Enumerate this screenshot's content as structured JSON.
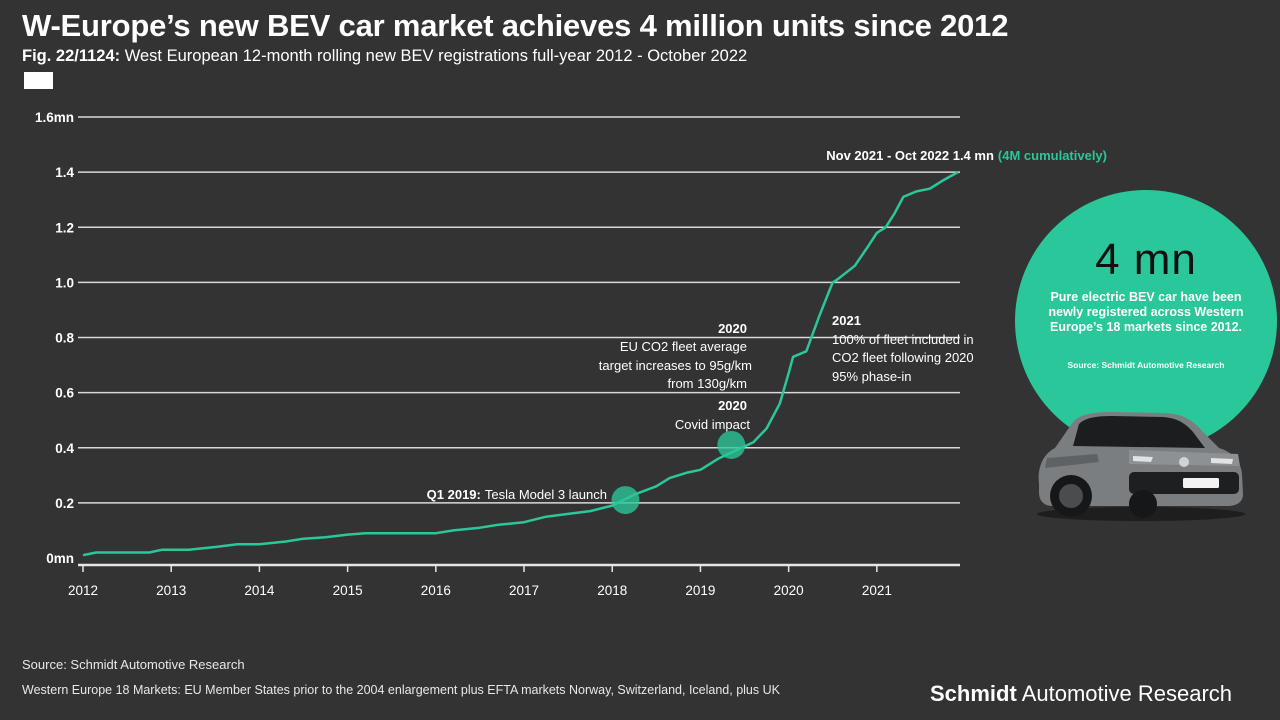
{
  "title": "W-Europe’s new BEV car market achieves 4 million units since 2012",
  "subtitle_fig": "Fig. 22/1124:",
  "subtitle_text": "West European 12-month rolling new BEV registrations full-year 2012 - October 2022",
  "colors": {
    "background": "#333333",
    "accent": "#2ac79a",
    "grid": "#d9d9d9",
    "text": "#ffffff"
  },
  "chart_data": {
    "type": "line",
    "title": "West European 12-month rolling new BEV registrations full-year 2012 - October 2022",
    "xlabel": "",
    "ylabel": "",
    "xlim": [
      2012,
      2021.92
    ],
    "ylim": [
      0,
      1.6
    ],
    "grid": true,
    "y_ticks": [
      {
        "value": 0,
        "label": "0mn"
      },
      {
        "value": 0.2,
        "label": "0.2"
      },
      {
        "value": 0.4,
        "label": "0.4"
      },
      {
        "value": 0.6,
        "label": "0.6"
      },
      {
        "value": 0.8,
        "label": "0.8"
      },
      {
        "value": 1.0,
        "label": "1.0"
      },
      {
        "value": 1.2,
        "label": "1.2"
      },
      {
        "value": 1.4,
        "label": "1.4"
      },
      {
        "value": 1.6,
        "label": "1.6mn"
      }
    ],
    "x_ticks": [
      {
        "value": 2012,
        "label": "2012"
      },
      {
        "value": 2013,
        "label": "2013"
      },
      {
        "value": 2014,
        "label": "2014"
      },
      {
        "value": 2015,
        "label": "2015"
      },
      {
        "value": 2016,
        "label": "2016"
      },
      {
        "value": 2017,
        "label": "2017"
      },
      {
        "value": 2018,
        "label": "2018"
      },
      {
        "value": 2019,
        "label": "2019"
      },
      {
        "value": 2020,
        "label": "2020"
      },
      {
        "value": 2021,
        "label": "2021"
      }
    ],
    "series": [
      {
        "name": "12-month rolling new BEV registrations (mn)",
        "color": "#2ac79a",
        "x": [
          2012,
          2012.15,
          2012.5,
          2012.75,
          2012.9,
          2013.2,
          2013.5,
          2013.75,
          2014,
          2014.3,
          2014.5,
          2014.75,
          2015,
          2015.2,
          2015.5,
          2015.75,
          2016,
          2016.2,
          2016.5,
          2016.7,
          2017,
          2017.25,
          2017.5,
          2017.75,
          2018,
          2018.25,
          2018.5,
          2018.65,
          2018.85,
          2019,
          2019.2,
          2019.4,
          2019.6,
          2019.75,
          2019.9,
          2020,
          2020.05,
          2020.2,
          2020.35,
          2020.5,
          2020.55,
          2020.75,
          2020.9,
          2021,
          2021.1,
          2021.2,
          2021.3,
          2021.45,
          2021.6,
          2021.75,
          2021.92
        ],
        "values": [
          0.01,
          0.02,
          0.02,
          0.02,
          0.03,
          0.03,
          0.04,
          0.05,
          0.05,
          0.06,
          0.07,
          0.075,
          0.085,
          0.09,
          0.09,
          0.09,
          0.09,
          0.1,
          0.11,
          0.12,
          0.13,
          0.15,
          0.16,
          0.17,
          0.19,
          0.23,
          0.26,
          0.29,
          0.31,
          0.32,
          0.36,
          0.39,
          0.42,
          0.47,
          0.56,
          0.67,
          0.73,
          0.75,
          0.88,
          1.0,
          1.01,
          1.06,
          1.13,
          1.18,
          1.2,
          1.25,
          1.31,
          1.33,
          1.34,
          1.37,
          1.4
        ]
      }
    ],
    "markers": [
      {
        "x": 2018.15,
        "y": 0.21
      },
      {
        "x": 2019.35,
        "y": 0.41
      }
    ],
    "annotations": {
      "end_label_main": "Nov 2021 - Oct 2022 1.4 mn",
      "end_label_accent": "(4M cumulatively)",
      "tesla_bold": "Q1 2019:",
      "tesla_text": "Tesla Model 3 launch",
      "covid_year": "2020",
      "covid_text": "Covid impact",
      "co2_year": "2020",
      "co2_line1": "EU CO2 fleet average",
      "co2_line2": "target increases to 95g/km",
      "co2_line3": "from 130g/km",
      "fleet_year": "2021",
      "fleet_line1": "100% of fleet included in",
      "fleet_line2": "CO2 fleet following 2020",
      "fleet_line3": "95% phase-in"
    }
  },
  "bubble": {
    "big": "4 mn",
    "text": "Pure electric BEV car have been newly registered across Western Europe’s 18 markets since 2012.",
    "source": "Source: Schmidt Automotive Research"
  },
  "footer": {
    "source": "Source: Schmidt Automotive Research",
    "note": "Western Europe 18 Markets: EU Member States prior to the 2004 enlargement plus EFTA markets Norway, Switzerland, Iceland, plus UK",
    "brand_bold": "Schmidt",
    "brand_rest": " Automotive Research"
  }
}
